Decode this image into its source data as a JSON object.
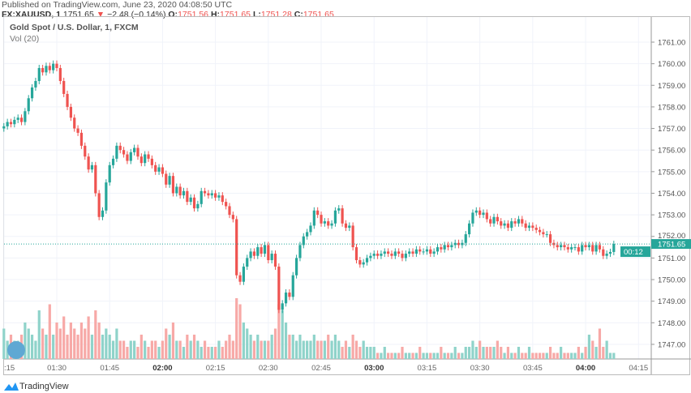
{
  "header": {
    "published": "Published on TradingView.com, June 23, 2020 04:08:50 UTC",
    "symbol": "FX:XAUUSD, 1",
    "last": "1751.65",
    "change": "−2.48 (−0.14%)",
    "o_label": "O:",
    "o": "1751.56",
    "h_label": "H:",
    "h": "1751.65",
    "l_label": "L:",
    "l": "1751.28",
    "c_label": "C:",
    "c": "1751.65"
  },
  "legend": {
    "title": "Gold Spot / U.S. Dollar, 1, FXCM",
    "volume": "Vol (20)"
  },
  "footer": {
    "brand": "TradingView"
  },
  "colors": {
    "up": "#26a69a",
    "down": "#ef5350",
    "vol_up": "#8fd3ca",
    "vol_down": "#f7a9a7"
  },
  "chart_data": {
    "type": "candlestick",
    "start_time": "01:15",
    "interval_minutes": 1,
    "ylim": [
      1746.5,
      1762.2
    ],
    "y_ticks": [
      "1761.00",
      "1760.00",
      "1759.00",
      "1758.00",
      "1757.00",
      "1756.00",
      "1755.00",
      "1754.00",
      "1753.00",
      "1752.00",
      "1751.00",
      "1750.00",
      "1749.00",
      "1748.00",
      "1747.00"
    ],
    "x_ticks": [
      ":15",
      "01:30",
      "01:45",
      "02:00",
      "02:15",
      "02:30",
      "02:45",
      "03:00",
      "03:15",
      "03:30",
      "03:45",
      "04:00",
      "04:15"
    ],
    "x_ticks_bold": [
      "02:00",
      "03:00",
      "04:00"
    ],
    "last_price_label": "1751.65",
    "countdown": "00:12",
    "closes": [
      1757.1,
      1757.3,
      1757.2,
      1757.4,
      1757.5,
      1757.3,
      1757.8,
      1758.4,
      1758.9,
      1759.2,
      1759.8,
      1759.6,
      1759.9,
      1759.7,
      1760.0,
      1759.8,
      1759.2,
      1758.6,
      1758.0,
      1757.5,
      1757.0,
      1756.8,
      1756.2,
      1755.7,
      1755.1,
      1755.3,
      1754.0,
      1752.9,
      1753.2,
      1754.5,
      1755.3,
      1755.6,
      1756.2,
      1756.0,
      1755.8,
      1755.5,
      1755.9,
      1756.1,
      1755.7,
      1755.4,
      1755.8,
      1755.6,
      1755.3,
      1755.0,
      1755.2,
      1754.9,
      1754.4,
      1754.8,
      1754.0,
      1754.3,
      1753.9,
      1754.1,
      1753.6,
      1753.8,
      1753.3,
      1753.5,
      1754.1,
      1754.0,
      1753.9,
      1754.0,
      1753.8,
      1753.9,
      1753.6,
      1753.4,
      1753.0,
      1752.8,
      1750.2,
      1749.9,
      1750.6,
      1751.0,
      1751.3,
      1751.1,
      1751.5,
      1751.2,
      1751.6,
      1750.9,
      1751.2,
      1750.6,
      1748.6,
      1748.9,
      1749.4,
      1749.2,
      1750.2,
      1751.0,
      1751.6,
      1752.0,
      1752.2,
      1752.5,
      1753.2,
      1753.0,
      1752.6,
      1752.7,
      1752.5,
      1752.6,
      1753.2,
      1753.3,
      1752.6,
      1752.4,
      1752.5,
      1751.5,
      1750.9,
      1750.7,
      1750.8,
      1751.0,
      1751.1,
      1751.2,
      1751.1,
      1751.2,
      1751.3,
      1751.2,
      1751.1,
      1751.3,
      1751.2,
      1751.0,
      1751.2,
      1751.3,
      1751.2,
      1751.4,
      1751.3,
      1751.3,
      1751.4,
      1751.2,
      1751.3,
      1751.5,
      1751.4,
      1751.6,
      1751.5,
      1751.6,
      1751.7,
      1751.6,
      1751.7,
      1752.1,
      1752.6,
      1753.1,
      1753.2,
      1753.0,
      1753.1,
      1752.8,
      1752.6,
      1752.9,
      1752.7,
      1752.5,
      1752.6,
      1752.4,
      1752.7,
      1752.6,
      1752.8,
      1752.6,
      1752.4,
      1752.5,
      1752.4,
      1752.3,
      1752.2,
      1752.1,
      1752.1,
      1751.7,
      1751.6,
      1751.5,
      1751.6,
      1751.5,
      1751.4,
      1751.5,
      1751.5,
      1751.3,
      1751.6,
      1751.5,
      1751.6,
      1751.3,
      1751.6,
      1751.4,
      1751.1,
      1751.2,
      1751.28,
      1751.65
    ],
    "volumes": [
      5,
      3,
      4,
      3,
      3,
      4,
      6,
      5,
      4,
      3,
      8,
      5,
      4,
      9,
      4,
      6,
      5,
      7,
      4,
      6,
      5,
      4,
      6,
      5,
      7,
      4,
      8,
      6,
      4,
      5,
      4,
      3,
      5,
      3,
      3,
      2,
      3,
      3,
      2,
      4,
      3,
      2,
      3,
      3,
      2,
      3,
      5,
      4,
      6,
      3,
      3,
      2,
      4,
      3,
      4,
      3,
      2,
      3,
      2,
      2,
      2,
      3,
      2,
      3,
      4,
      3,
      10,
      9,
      6,
      5,
      4,
      3,
      4,
      3,
      3,
      3,
      4,
      5,
      9,
      8,
      6,
      4,
      4,
      3,
      4,
      3,
      3,
      3,
      4,
      3,
      3,
      3,
      4,
      3,
      4,
      3,
      2,
      3,
      2,
      4,
      3,
      2,
      3,
      2,
      2,
      2,
      1,
      1,
      2,
      1,
      1,
      1,
      1,
      2,
      1,
      1,
      1,
      1,
      2,
      1,
      1,
      1,
      1,
      1,
      2,
      1,
      1,
      1,
      2,
      1,
      1,
      2,
      2,
      3,
      2,
      3,
      2,
      2,
      2,
      2,
      3,
      2,
      1,
      2,
      1,
      1,
      2,
      1,
      1,
      2,
      1,
      1,
      1,
      1,
      1,
      2,
      1,
      1,
      2,
      1,
      1,
      1,
      1,
      2,
      1,
      2,
      4,
      3,
      2,
      5,
      2,
      3,
      1,
      1
    ]
  }
}
